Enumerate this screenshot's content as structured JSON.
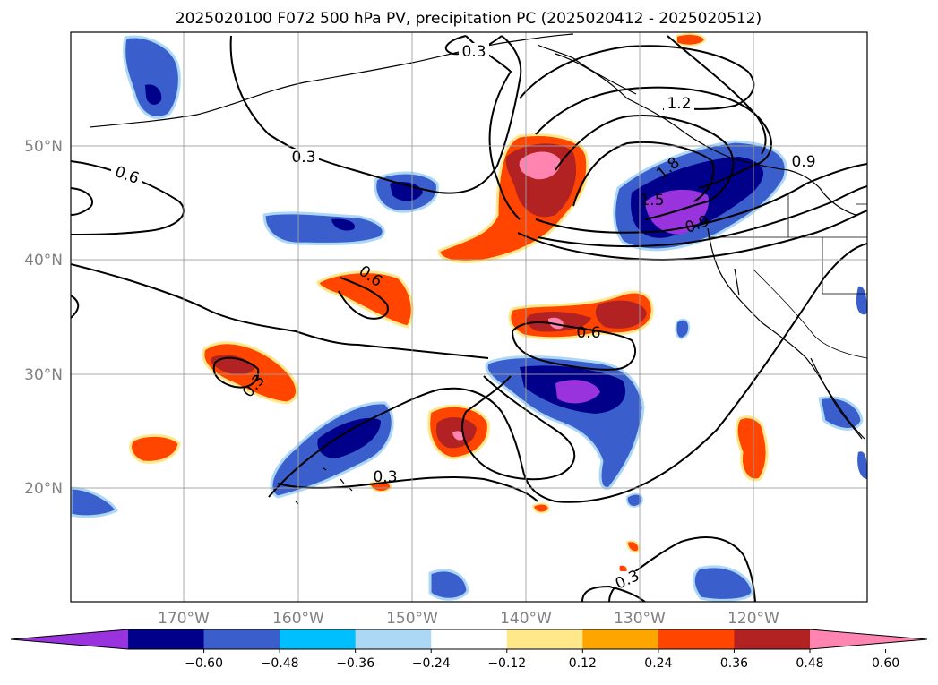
{
  "title": "2025020100 F072 500 hPa PV, precipitation PC (2025020412 - 2025020512)",
  "map": {
    "lat_labels": [
      "50°N",
      "40°N",
      "30°N",
      "20°N"
    ],
    "lon_labels": [
      "170°W",
      "160°W",
      "150°W",
      "140°W",
      "130°W",
      "120°W"
    ]
  },
  "colorbar": {
    "ticks": [
      "−0.60",
      "−0.48",
      "−0.36",
      "−0.24",
      "−0.12",
      "0.12",
      "0.24",
      "0.36",
      "0.48",
      "0.60"
    ],
    "colors": [
      "#9933dd",
      "#00008b",
      "#3a5fcd",
      "#00bfff",
      "#add8f5",
      "#ffffff",
      "#ffe88a",
      "#ffa500",
      "#ff4500",
      "#b22222",
      "#ff85b0"
    ]
  },
  "contour_labels": [
    "0.3",
    "0.6",
    "0.3",
    "1.2",
    "1.5",
    "1.8",
    "0.9",
    "0.6",
    "0.3",
    "0.6",
    "0.6",
    "0.3",
    "0.3",
    "0.9"
  ]
}
